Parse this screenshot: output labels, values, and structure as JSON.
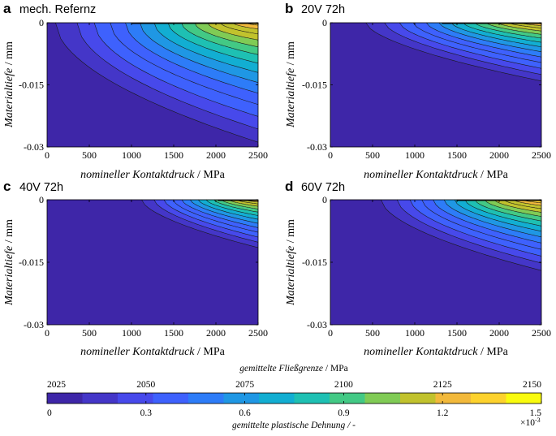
{
  "chart_data": {
    "type": "contour",
    "panels": [
      {
        "letter": "a",
        "title": "mech. Refernz",
        "xlabel_italic": "nomineller Kontaktdruck",
        "xlabel_unit": " / MPa",
        "ylabel_italic": "Materialtiefe",
        "ylabel_unit": " / mm",
        "xlim": [
          0,
          2500
        ],
        "ylim": [
          -0.03,
          0
        ],
        "xticks": [
          "0",
          "500",
          "1000",
          "1500",
          "2000",
          "2500"
        ],
        "yticks": [
          "0",
          "-0.015",
          "-0.03"
        ],
        "onset_pressure": 100,
        "max_depth": 0.0295,
        "peak_level": 1.45,
        "spread": 1.0
      },
      {
        "letter": "b",
        "title": "20V 72h",
        "xlabel_italic": "nomineller Kontaktdruck",
        "xlabel_unit": " / MPa",
        "ylabel_italic": "Materialtiefe",
        "ylabel_unit": " / mm",
        "xlim": [
          0,
          2500
        ],
        "ylim": [
          -0.03,
          0
        ],
        "xticks": [
          "0",
          "500",
          "1000",
          "1500",
          "2000",
          "2500"
        ],
        "yticks": [
          "0",
          "-0.015",
          "-0.03"
        ],
        "onset_pressure": 420,
        "max_depth": 0.0145,
        "peak_level": 1.45,
        "spread": 0.7
      },
      {
        "letter": "c",
        "title": "40V 72h",
        "xlabel_italic": "nomineller Kontaktdruck",
        "xlabel_unit": " / MPa",
        "ylabel_italic": "Materialtiefe",
        "ylabel_unit": " / mm",
        "xlim": [
          0,
          2500
        ],
        "ylim": [
          -0.03,
          0
        ],
        "xticks": [
          "0",
          "500",
          "1000",
          "1500",
          "2000",
          "2500"
        ],
        "yticks": [
          "0",
          "-0.015",
          "-0.03"
        ],
        "onset_pressure": 1120,
        "max_depth": 0.012,
        "peak_level": 1.4,
        "spread": 0.7
      },
      {
        "letter": "d",
        "title": "60V 72h",
        "xlabel_italic": "nomineller Kontaktdruck",
        "xlabel_unit": " / MPa",
        "ylabel_italic": "Materialtiefe",
        "ylabel_unit": " / mm",
        "xlim": [
          0,
          2500
        ],
        "ylim": [
          -0.03,
          0
        ],
        "xticks": [
          "0",
          "500",
          "1000",
          "1500",
          "2000",
          "2500"
        ],
        "yticks": [
          "0",
          "-0.015",
          "-0.03"
        ],
        "onset_pressure": 600,
        "max_depth": 0.0175,
        "peak_level": 1.5,
        "spread": 0.85
      }
    ],
    "colorbar": {
      "top_label_italic": "gemittelte Fließgrenze",
      "top_label_unit": " / MPa",
      "top_ticks": [
        "2025",
        "2050",
        "2075",
        "2100",
        "2125",
        "2150"
      ],
      "bottom_label": "gemittelte plastische Dehnung / -",
      "bottom_ticks": [
        "0",
        "0.3",
        "0.6",
        "0.9",
        "1.2",
        "1.5"
      ],
      "exponent_base": "×10",
      "exponent_power": "-3",
      "range_top": [
        2025,
        2150
      ],
      "range_bottom": [
        0,
        0.0015
      ],
      "colors": [
        "#3e26a8",
        "#4436c8",
        "#4749eb",
        "#3e61fd",
        "#2d7cf8",
        "#1f97e4",
        "#12aed2",
        "#1ec0b3",
        "#43c985",
        "#80cb55",
        "#c1c22d",
        "#f2b93b",
        "#fdd22d",
        "#f9fb0e"
      ]
    }
  }
}
